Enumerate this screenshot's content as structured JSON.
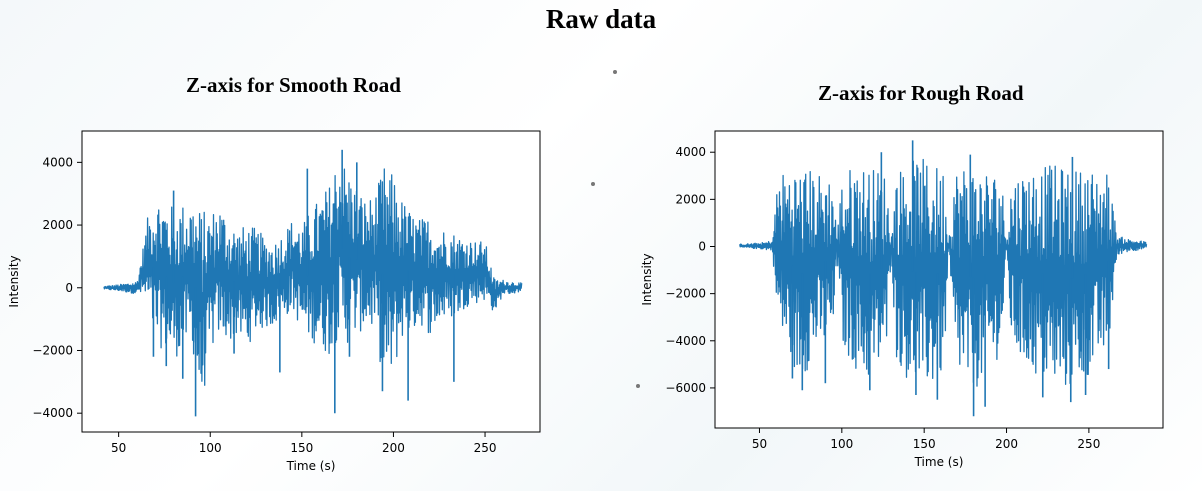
{
  "title": "Raw data",
  "colors": {
    "series": "#1f77b4",
    "axes": "#000000"
  },
  "chart_data": [
    {
      "type": "line",
      "title": "Z-axis for Smooth Road",
      "xlabel": "Time (s)",
      "ylabel": "Intensity",
      "xlim": [
        30,
        280
      ],
      "ylim": [
        -4600,
        5000
      ],
      "xticks": [
        50,
        100,
        150,
        200,
        250
      ],
      "xtick_labels": [
        "50",
        "100",
        "150",
        "200",
        "250"
      ],
      "yticks": [
        -4000,
        -2000,
        0,
        2000,
        4000
      ],
      "ytick_labels": [
        "−4000",
        "−2000",
        "0",
        "2000",
        "4000"
      ],
      "grid": false,
      "series": [
        {
          "x": [
            42,
            50,
            55,
            60,
            63,
            66,
            70,
            75,
            80,
            85,
            90,
            95,
            100,
            105,
            110,
            115,
            120,
            125,
            130,
            135,
            140,
            145,
            150,
            155,
            160,
            165,
            170,
            175,
            180,
            185,
            190,
            195,
            200,
            205,
            210,
            215,
            220,
            225,
            230,
            235,
            240,
            245,
            250,
            255,
            260,
            265,
            270
          ],
          "upper": [
            50,
            100,
            150,
            200,
            1200,
            2300,
            3000,
            2800,
            2600,
            2700,
            2800,
            2500,
            2400,
            2700,
            2200,
            1900,
            2000,
            1900,
            1600,
            1500,
            1800,
            2200,
            2000,
            2500,
            2900,
            3300,
            4400,
            3800,
            3300,
            2800,
            3000,
            3900,
            3600,
            2800,
            2400,
            2200,
            2300,
            1900,
            1900,
            1700,
            1600,
            1500,
            1500,
            300,
            250,
            200,
            150
          ],
          "lower": [
            -50,
            -100,
            -150,
            -200,
            -300,
            -700,
            -1800,
            -2000,
            -2300,
            -2000,
            -1800,
            -3900,
            -2100,
            -1500,
            -1700,
            -1600,
            -1900,
            -1400,
            -1300,
            -1200,
            -1000,
            -700,
            -1400,
            -1700,
            -1900,
            -2200,
            -1600,
            -1800,
            -1500,
            -1300,
            -1400,
            -3200,
            -2800,
            -1600,
            -1400,
            -1200,
            -1500,
            -1100,
            -1000,
            -900,
            -600,
            -500,
            -400,
            -800,
            -200,
            -200,
            -100
          ],
          "spikes": [
            {
              "x": 69,
              "y": -2200
            },
            {
              "x": 76,
              "y": -2500
            },
            {
              "x": 85,
              "y": -2900
            },
            {
              "x": 92,
              "y": -4100
            },
            {
              "x": 113,
              "y": -2100
            },
            {
              "x": 138,
              "y": -2700
            },
            {
              "x": 168,
              "y": -4000
            },
            {
              "x": 176,
              "y": -2200
            },
            {
              "x": 194,
              "y": -3300
            },
            {
              "x": 208,
              "y": -3600
            },
            {
              "x": 233,
              "y": -3000
            },
            {
              "x": 172,
              "y": 4400
            },
            {
              "x": 180,
              "y": 4000
            },
            {
              "x": 153,
              "y": 3800
            },
            {
              "x": 80,
              "y": 3100
            }
          ]
        }
      ]
    },
    {
      "type": "line",
      "title": "Z-axis for Rough Road",
      "xlabel": "Time (s)",
      "ylabel": "Intensity",
      "xlim": [
        23,
        295
      ],
      "ylim": [
        -7700,
        4900
      ],
      "xticks": [
        50,
        100,
        150,
        200,
        250
      ],
      "xtick_labels": [
        "50",
        "100",
        "150",
        "200",
        "250"
      ],
      "yticks": [
        -6000,
        -4000,
        -2000,
        0,
        2000,
        4000
      ],
      "ytick_labels": [
        "−6000",
        "−4000",
        "−2000",
        "0",
        "2000",
        "4000"
      ],
      "grid": false,
      "series": [
        {
          "x": [
            38,
            50,
            55,
            58,
            61,
            68,
            75,
            82,
            88,
            95,
            97,
            100,
            108,
            115,
            122,
            127,
            130,
            133,
            140,
            147,
            155,
            162,
            165,
            168,
            175,
            182,
            190,
            197,
            200,
            203,
            212,
            222,
            232,
            242,
            252,
            262,
            267,
            270,
            275,
            280,
            285
          ],
          "upper": [
            100,
            150,
            200,
            300,
            3000,
            3400,
            3400,
            3300,
            3100,
            3000,
            300,
            3000,
            3600,
            3400,
            3300,
            3100,
            300,
            3200,
            3600,
            3800,
            3500,
            3400,
            300,
            3300,
            3600,
            3400,
            3300,
            3000,
            300,
            3000,
            3300,
            3500,
            3400,
            3300,
            3300,
            3200,
            500,
            400,
            300,
            250,
            200
          ],
          "lower": [
            -50,
            -100,
            -150,
            -200,
            -3500,
            -4700,
            -5800,
            -4800,
            -4400,
            -4000,
            -200,
            -4200,
            -5200,
            -5800,
            -5400,
            -4700,
            -200,
            -4800,
            -5700,
            -6000,
            -6000,
            -5400,
            -200,
            -4800,
            -6200,
            -6000,
            -5400,
            -4400,
            -200,
            -4300,
            -5200,
            -5800,
            -6200,
            -6000,
            -5400,
            -4400,
            -500,
            -300,
            -200,
            -150,
            -100
          ],
          "spikes": [
            {
              "x": 70,
              "y": -5600
            },
            {
              "x": 76,
              "y": -6100
            },
            {
              "x": 90,
              "y": -5800
            },
            {
              "x": 117,
              "y": -6100
            },
            {
              "x": 145,
              "y": -6300
            },
            {
              "x": 158,
              "y": -6500
            },
            {
              "x": 180,
              "y": -7200
            },
            {
              "x": 187,
              "y": -6800
            },
            {
              "x": 222,
              "y": -6400
            },
            {
              "x": 239,
              "y": -6600
            },
            {
              "x": 248,
              "y": -6300
            },
            {
              "x": 262,
              "y": -5200
            },
            {
              "x": 143,
              "y": 4500
            },
            {
              "x": 124,
              "y": 4000
            },
            {
              "x": 178,
              "y": 3900
            },
            {
              "x": 240,
              "y": 3800
            }
          ]
        }
      ]
    }
  ]
}
